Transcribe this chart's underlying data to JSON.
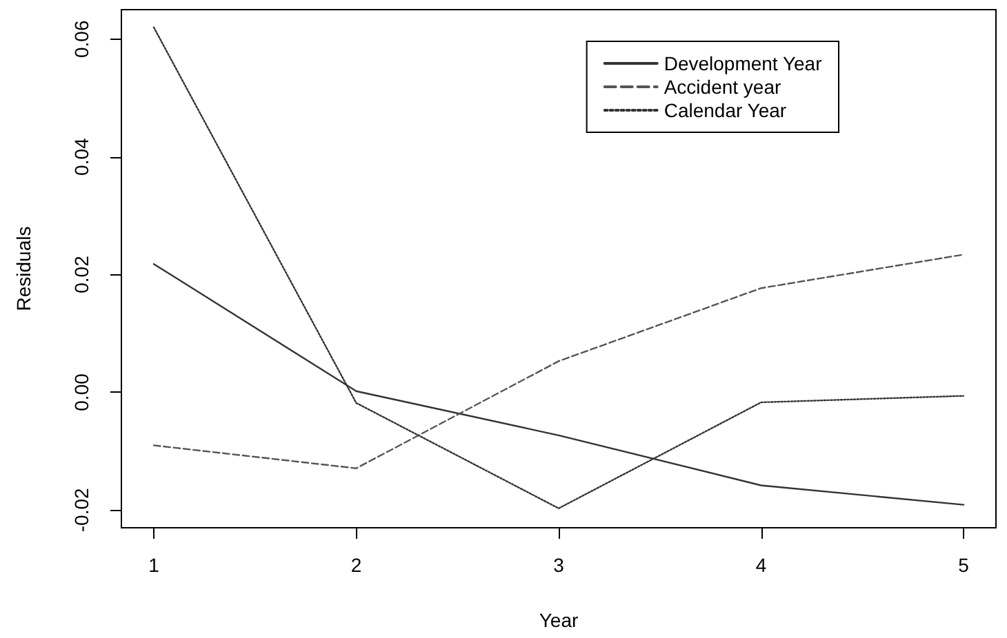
{
  "chart_data": {
    "type": "line",
    "xlabel": "Year",
    "ylabel": "Residuals",
    "x": [
      1,
      2,
      3,
      4,
      5
    ],
    "series": [
      {
        "name": "Development Year",
        "color": "#333333",
        "line_style": "solid",
        "values": [
          0.0218,
          0.0002,
          -0.0073,
          -0.0158,
          -0.0191
        ]
      },
      {
        "name": "Accident year",
        "color": "#555555",
        "line_style": "dashed",
        "values": [
          -0.009,
          -0.0129,
          0.0053,
          0.0177,
          0.0234
        ]
      },
      {
        "name": "Calendar Year",
        "color": "#333333",
        "line_style": "dotted",
        "values": [
          0.062,
          -0.0018,
          -0.0197,
          -0.0017,
          -0.0006
        ]
      }
    ],
    "xlim": [
      0.84,
      5.16
    ],
    "xticks": [
      1,
      2,
      3,
      4,
      5
    ],
    "ylim": [
      -0.023,
      0.065
    ],
    "yticks": [
      -0.02,
      {
        "value": 0,
        "label": "0.00"
      },
      0.02,
      0.04,
      0.06
    ],
    "marker": "none",
    "legend": "top right"
  }
}
